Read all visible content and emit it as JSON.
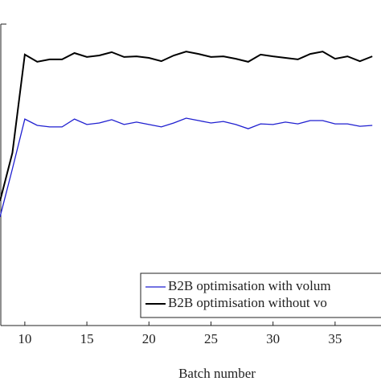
{
  "chart_data": {
    "type": "line",
    "x_label": "Batch number",
    "x": [
      8,
      9,
      10,
      11,
      12,
      13,
      14,
      15,
      16,
      17,
      18,
      19,
      20,
      21,
      22,
      23,
      24,
      25,
      26,
      27,
      28,
      29,
      30,
      31,
      32,
      33,
      34,
      35,
      36,
      37,
      38
    ],
    "series": [
      {
        "name": "B2B optimisation with volum",
        "color": "#1f1fd0",
        "values": [
          36,
          52,
          68.5,
          66.4,
          65.9,
          65.9,
          68.5,
          66.7,
          67.2,
          68.3,
          66.7,
          67.5,
          66.7,
          65.9,
          67.2,
          68.8,
          68,
          67.2,
          67.7,
          66.7,
          65.3,
          66.9,
          66.7,
          67.5,
          66.9,
          68,
          68,
          66.9,
          66.9,
          66.1,
          66.4
        ]
      },
      {
        "name": "B2B optimisation without vo",
        "color": "#000000",
        "values": [
          41.3,
          57.3,
          89.9,
          87.5,
          88.3,
          88.3,
          90.4,
          89.1,
          89.6,
          90.7,
          89.1,
          89.3,
          88.8,
          87.7,
          89.6,
          90.9,
          90.1,
          89.1,
          89.3,
          88.5,
          87.5,
          89.9,
          89.3,
          88.8,
          88.3,
          90.1,
          90.9,
          88.5,
          89.3,
          87.7,
          89.3
        ]
      }
    ],
    "xlim": [
      8,
      38.7
    ],
    "xticks": [
      10,
      15,
      20,
      25,
      30,
      35
    ],
    "ylim": [
      0,
      100
    ]
  }
}
